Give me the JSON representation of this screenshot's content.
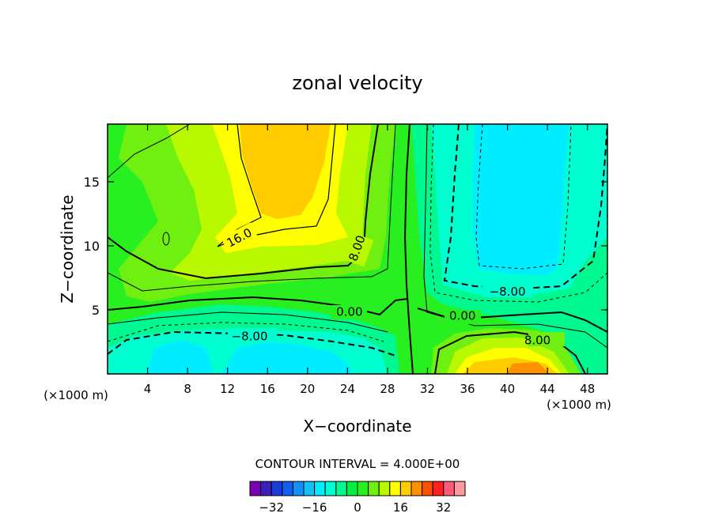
{
  "chart_data": {
    "type": "heatmap",
    "title": "zonal velocity",
    "xlabel": "X−coordinate",
    "ylabel": "Z−coordinate",
    "x_unit": "(×1000 m)",
    "x_unit_right": "(×1000 m)",
    "xlim": [
      0,
      50
    ],
    "ylim": [
      0,
      19.5
    ],
    "x_ticks": [
      4,
      8,
      12,
      16,
      20,
      24,
      28,
      32,
      36,
      40,
      44,
      48
    ],
    "x_tick_labels": [
      "4",
      "8",
      "12",
      "16",
      "20",
      "24",
      "28",
      "32",
      "36",
      "40",
      "44",
      "48"
    ],
    "y_ticks": [
      5,
      10,
      15
    ],
    "y_tick_labels": [
      "5",
      "10",
      "15"
    ],
    "contour_interval_text": "CONTOUR INTERVAL = 4.000E+00",
    "contour_labels": [
      {
        "text": "16.0",
        "x": 13.2,
        "y": 10.6
      },
      {
        "text": "8.00",
        "x": 25.0,
        "y": 9.8
      },
      {
        "text": "0.00",
        "x": 24.2,
        "y": 4.8
      },
      {
        "text": "−8.00",
        "x": 14.2,
        "y": 2.9
      },
      {
        "text": "−8.00",
        "x": 40.0,
        "y": 6.4
      },
      {
        "text": "0.00",
        "x": 35.5,
        "y": 4.5
      },
      {
        "text": "8.00",
        "x": 43.0,
        "y": 2.6
      }
    ],
    "colorbar": {
      "levels": [
        -36,
        -32,
        -28,
        -24,
        -20,
        -16,
        -12,
        -8,
        -4,
        0,
        4,
        8,
        12,
        16,
        20,
        24,
        28,
        32,
        36
      ],
      "colors": [
        "#7a00b4",
        "#3a20b8",
        "#1c3cd8",
        "#1060f0",
        "#1090f8",
        "#10c0f8",
        "#00ecff",
        "#00ffd0",
        "#00f890",
        "#00f040",
        "#28f020",
        "#70f010",
        "#b8f800",
        "#ffff00",
        "#ffcc00",
        "#ff9000",
        "#ff5000",
        "#ff2020",
        "#ff5a78",
        "#ff9aa0"
      ],
      "tick_values": [
        -32,
        -16,
        0,
        16,
        32
      ],
      "tick_labels": [
        "−32",
        "−16",
        "0",
        "16",
        "32"
      ]
    }
  }
}
